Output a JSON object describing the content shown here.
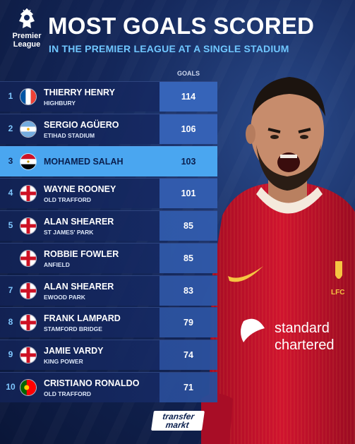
{
  "header": {
    "logo_text": "Premier League",
    "title": "MOST GOALS SCORED",
    "subtitle": "IN THE PREMIER LEAGUE AT A SINGLE STADIUM",
    "goals_column": "GOALS"
  },
  "rows": [
    {
      "rank": "1",
      "flag": "france",
      "name": "THIERRY HENRY",
      "stadium": "HIGHBURY",
      "goals": "114"
    },
    {
      "rank": "2",
      "flag": "argentina",
      "name": "SERGIO AGÜERO",
      "stadium": "ETIHAD STADIUM",
      "goals": "106"
    },
    {
      "rank": "3",
      "flag": "egypt",
      "name": "MOHAMED SALAH",
      "stadium": "",
      "goals": "103",
      "highlight": true
    },
    {
      "rank": "4",
      "flag": "england",
      "name": "WAYNE ROONEY",
      "stadium": "OLD TRAFFORD",
      "goals": "101"
    },
    {
      "rank": "5",
      "flag": "england",
      "name": "ALAN SHEARER",
      "stadium": "ST JAMES' PARK",
      "goals": "85"
    },
    {
      "rank": "",
      "flag": "england",
      "name": "ROBBIE FOWLER",
      "stadium": "ANFIELD",
      "goals": "85"
    },
    {
      "rank": "7",
      "flag": "england",
      "name": "ALAN SHEARER",
      "stadium": "EWOOD PARK",
      "goals": "83"
    },
    {
      "rank": "8",
      "flag": "england",
      "name": "FRANK LAMPARD",
      "stadium": "STAMFORD BRIDGE",
      "goals": "79"
    },
    {
      "rank": "9",
      "flag": "england",
      "name": "JAMIE VARDY",
      "stadium": "KING POWER",
      "goals": "74"
    },
    {
      "rank": "10",
      "flag": "portugal",
      "name": "CRISTIANO RONALDO",
      "stadium": "OLD TRAFFORD",
      "goals": "71"
    }
  ],
  "shirt": {
    "sponsor_line1": "standard",
    "sponsor_line2": "chartered",
    "crest_text": "LFC"
  },
  "footer": {
    "brand_line1": "transfer",
    "brand_line2": "markt"
  },
  "colors": {
    "highlight_row": "#4aa6f0",
    "row_bg": "#162a66",
    "subtitle": "#6fc6ff",
    "shirt_red": "#c8102e"
  }
}
